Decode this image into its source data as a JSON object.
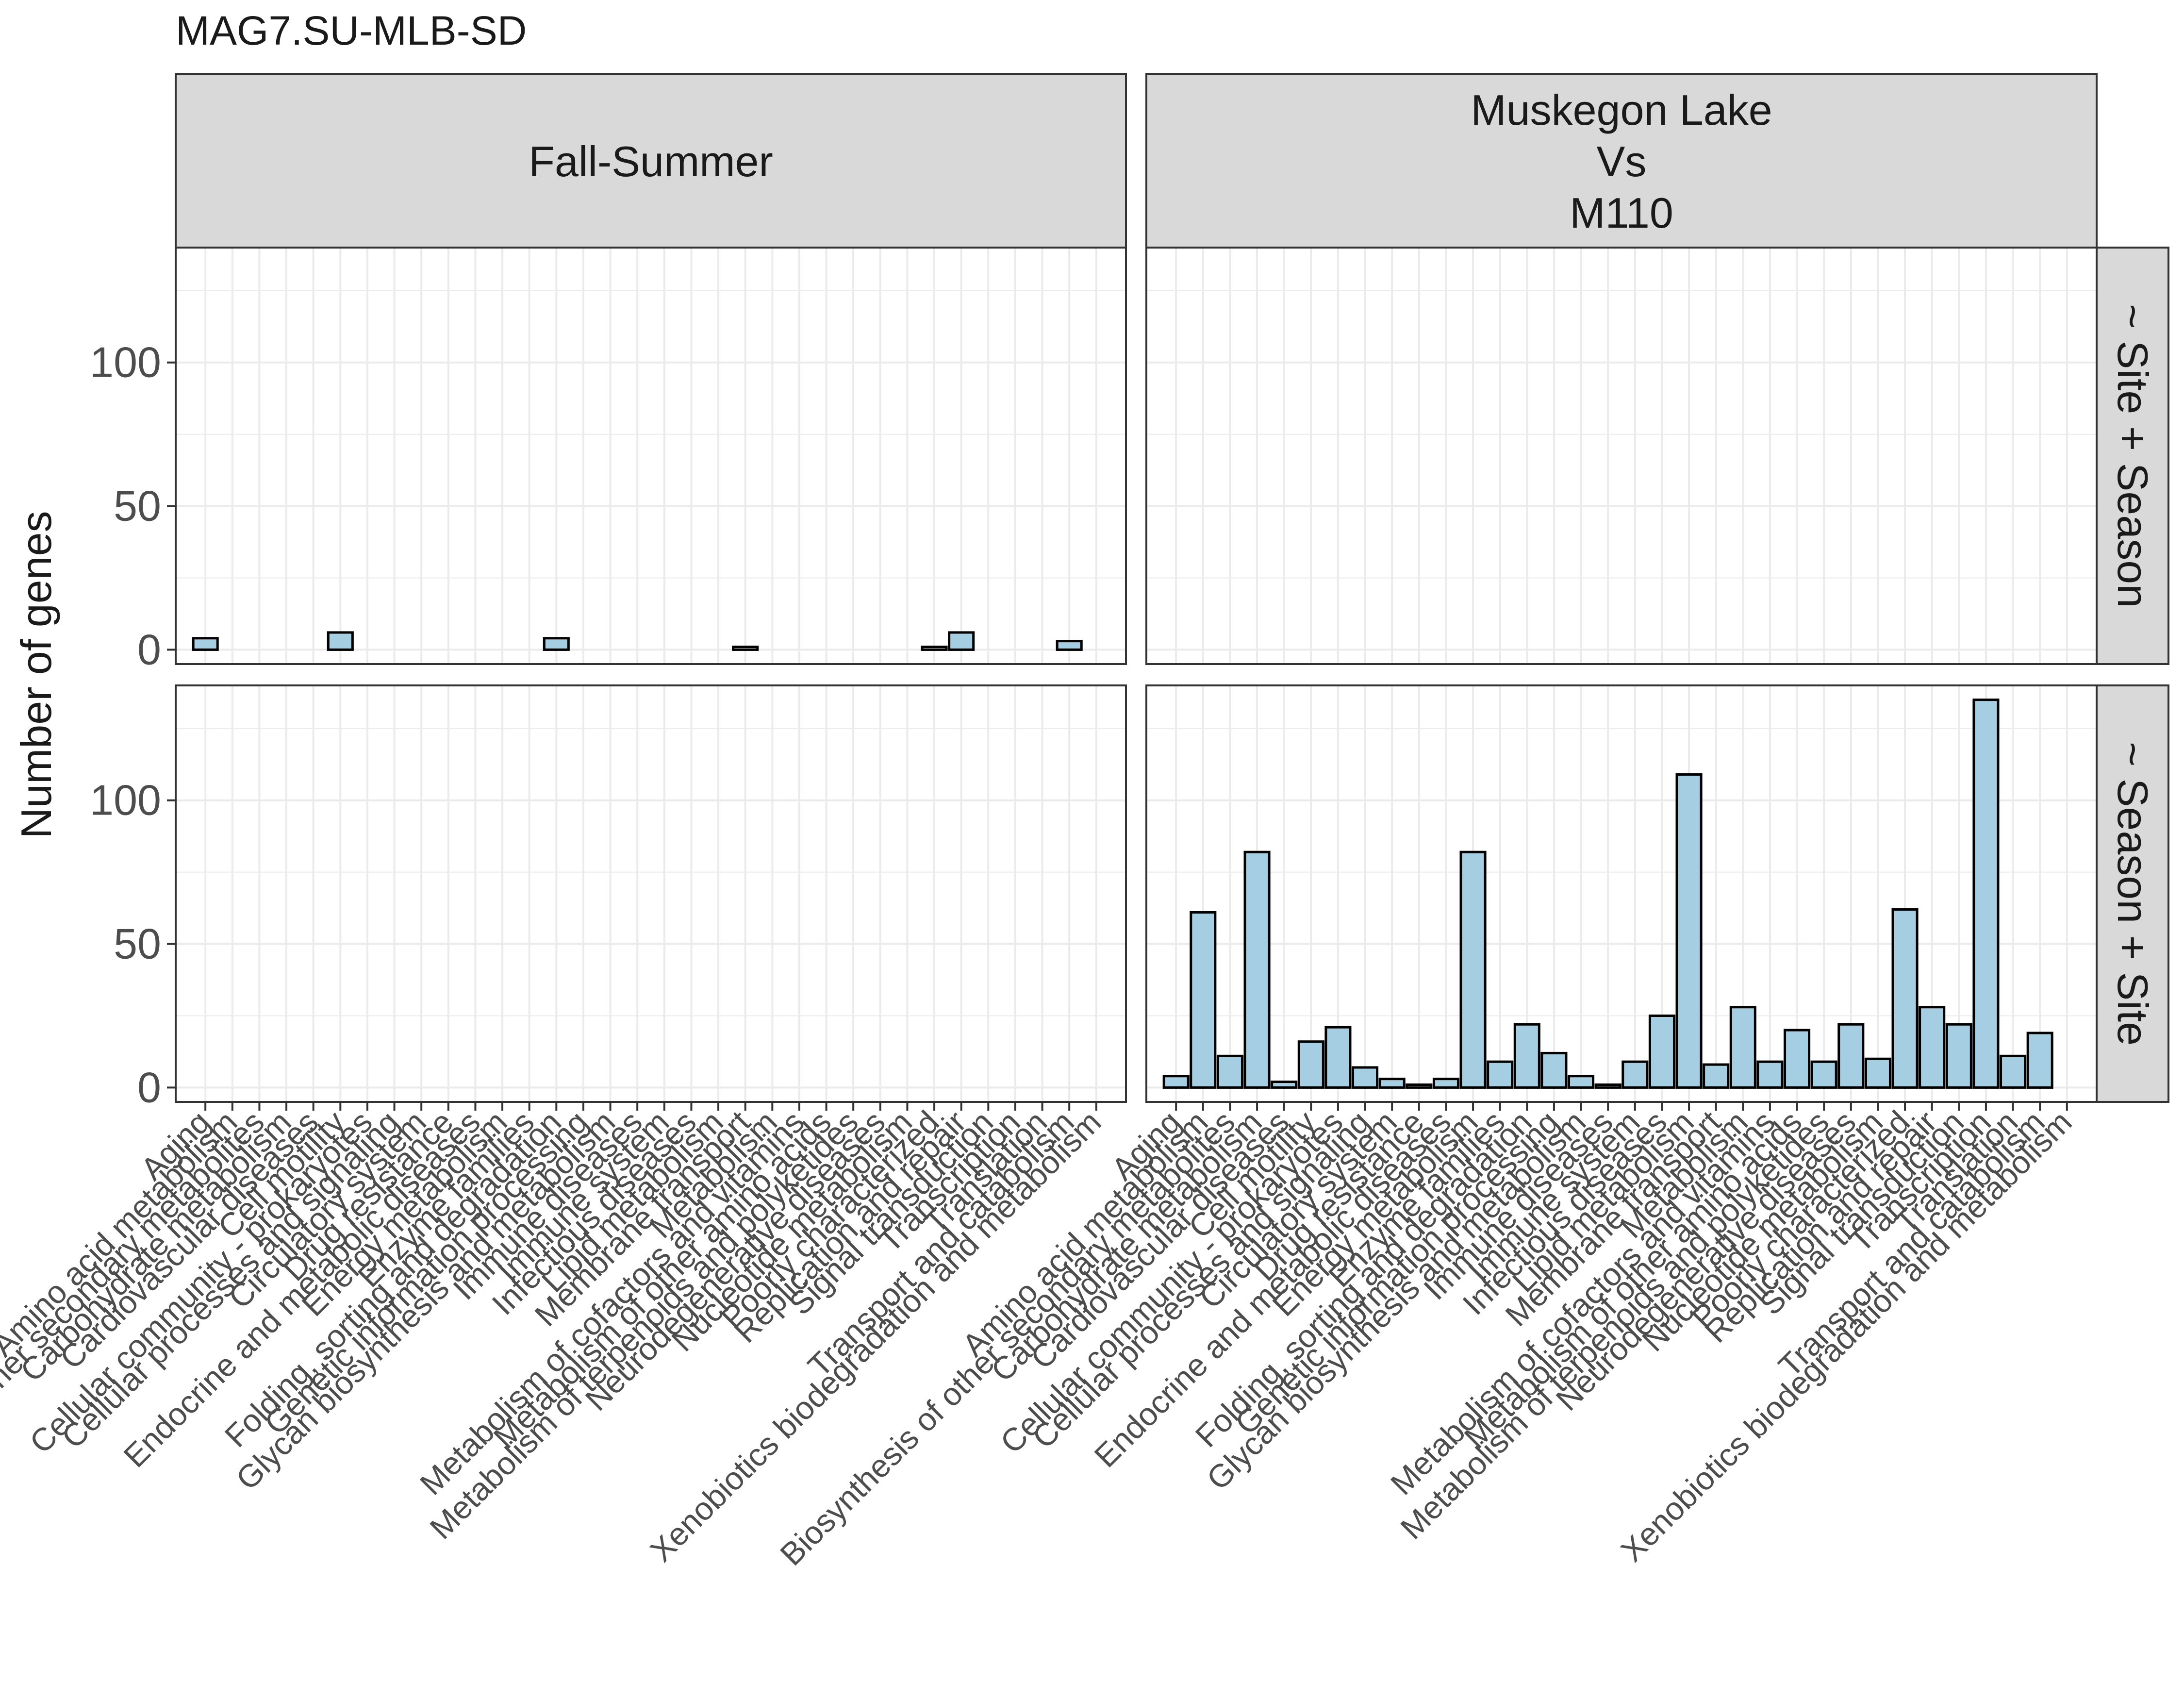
{
  "chart_data": {
    "type": "bar",
    "title": "MAG7.SU-MLB-SD",
    "ylabel": "Number of genes",
    "xlabel": "",
    "ylim": [
      -5,
      140
    ],
    "yticks": [
      0,
      50,
      100
    ],
    "grid": true,
    "legend": "none",
    "colors": {
      "bar_fill": "#a6cee3",
      "bar_stroke": "#000000",
      "strip_fill": "#d9d9d9",
      "grid": "#ebebeb",
      "panel_border": "#333333"
    },
    "columns": [
      {
        "label": "Fall-Summer"
      },
      {
        "label": "Muskegon Lake\nVs\nM110"
      }
    ],
    "rows": [
      {
        "label": "~ Site + Season"
      },
      {
        "label": "~ Season + Site"
      }
    ],
    "categories": [
      "Aging",
      "Amino acid metabolism",
      "Biosynthesis of other secondary metabolites",
      "Carbohydrate metabolism",
      "Cardiovascular diseases",
      "Cell motility",
      "Cellular community - prokaryotes",
      "Cellular processes and signaling",
      "Circulatory system",
      "Drug resistance",
      "Endocrine and metabolic diseases",
      "Energy metabolism",
      "Enzyme families",
      "Folding, sorting and degradation",
      "Genetic information processing",
      "Glycan biosynthesis and metabolism",
      "Immune diseases",
      "Immune system",
      "Infectious diseases",
      "Lipid metabolism",
      "Membrane transport",
      "Metabolism",
      "Metabolism of cofactors and vitamins",
      "Metabolism of other amino acids",
      "Metabolism of terpenoids and polyketides",
      "Neurodegenerative diseases",
      "Nucleotide metabolism",
      "Poorly characterized",
      "Replication and repair",
      "Signal transduction",
      "Transcription",
      "Translation",
      "Transport and catabolism",
      "Xenobiotics biodegradation and metabolism"
    ],
    "panels": [
      {
        "row": 0,
        "col": 0,
        "values": [
          4,
          0,
          0,
          0,
          0,
          6,
          0,
          0,
          0,
          0,
          0,
          0,
          0,
          4,
          0,
          0,
          0,
          0,
          0,
          0,
          1,
          0,
          0,
          0,
          0,
          0,
          0,
          1,
          6,
          0,
          0,
          0,
          3,
          0
        ]
      },
      {
        "row": 0,
        "col": 1,
        "values": [
          0,
          0,
          0,
          0,
          0,
          0,
          0,
          0,
          0,
          0,
          0,
          0,
          0,
          0,
          0,
          0,
          0,
          0,
          0,
          0,
          0,
          0,
          0,
          0,
          0,
          0,
          0,
          0,
          0,
          0,
          0,
          0,
          0,
          0
        ]
      },
      {
        "row": 1,
        "col": 0,
        "values": [
          0,
          0,
          0,
          0,
          0,
          0,
          0,
          0,
          0,
          0,
          0,
          0,
          0,
          0,
          0,
          0,
          0,
          0,
          0,
          0,
          0,
          0,
          0,
          0,
          0,
          0,
          0,
          0,
          0,
          0,
          0,
          0,
          0,
          0
        ]
      },
      {
        "row": 1,
        "col": 1,
        "values": [
          4,
          61,
          11,
          82,
          2,
          16,
          21,
          7,
          3,
          1,
          3,
          82,
          9,
          22,
          12,
          4,
          1,
          9,
          25,
          109,
          8,
          28,
          9,
          20,
          9,
          22,
          10,
          62,
          28,
          22,
          135,
          11,
          19,
          0
        ]
      }
    ]
  }
}
